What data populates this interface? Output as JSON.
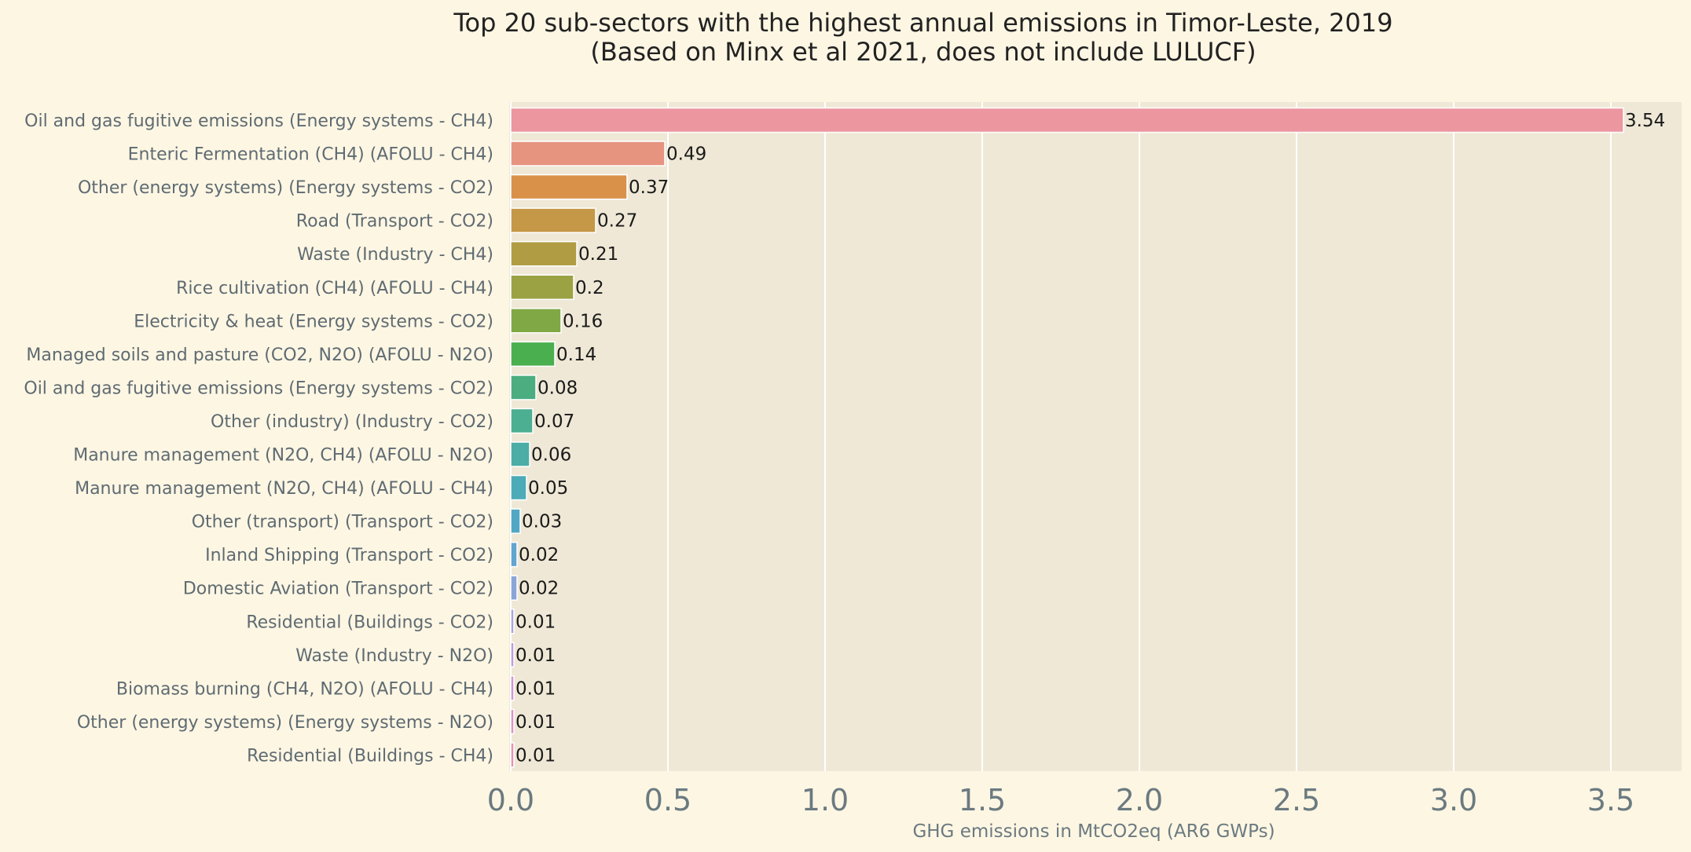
{
  "chart_data": {
    "type": "bar",
    "orientation": "horizontal",
    "title": "Top 20 sub-sectors with the highest annual emissions in Timor-Leste, 2019",
    "subtitle": "(Based on Minx et al 2021, does not include LULUCF)",
    "xlabel": "GHG emissions in MtCO2eq (AR6 GWPs)",
    "ylabel": "",
    "xlim": [
      0,
      3.72
    ],
    "xticks": [
      "0.0",
      "0.5",
      "1.0",
      "1.5",
      "2.0",
      "2.5",
      "3.0",
      "3.5"
    ],
    "grid": true,
    "categories": [
      "Oil and gas fugitive emissions (Energy systems - CH4)",
      "Enteric Fermentation (CH4) (AFOLU - CH4)",
      "Other (energy systems) (Energy systems - CO2)",
      "Road (Transport - CO2)",
      "Waste (Industry - CH4)",
      "Rice cultivation (CH4) (AFOLU - CH4)",
      "Electricity & heat (Energy systems - CO2)",
      "Managed soils and pasture (CO2, N2O) (AFOLU - N2O)",
      "Oil and gas fugitive emissions (Energy systems - CO2)",
      "Other (industry) (Industry - CO2)",
      "Manure management (N2O, CH4) (AFOLU - N2O)",
      "Manure management (N2O, CH4) (AFOLU - CH4)",
      "Other (transport) (Transport - CO2)",
      "Inland Shipping (Transport - CO2)",
      "Domestic Aviation (Transport - CO2)",
      "Residential (Buildings - CO2)",
      "Waste (Industry - N2O)",
      "Biomass burning (CH4, N2O) (AFOLU - CH4)",
      "Other (energy systems) (Energy systems - N2O)",
      "Residential (Buildings - CH4)"
    ],
    "values": [
      3.54,
      0.49,
      0.37,
      0.27,
      0.21,
      0.2,
      0.16,
      0.14,
      0.08,
      0.07,
      0.06,
      0.05,
      0.03,
      0.02,
      0.02,
      0.01,
      0.01,
      0.01,
      0.01,
      0.01
    ],
    "value_labels": [
      "3.54",
      "0.49",
      "0.37",
      "0.27",
      "0.21",
      "0.2",
      "0.16",
      "0.14",
      "0.08",
      "0.07",
      "0.06",
      "0.05",
      "0.03",
      "0.02",
      "0.02",
      "0.01",
      "0.01",
      "0.01",
      "0.01",
      "0.01"
    ],
    "colors": [
      "#ec96a0",
      "#e69480",
      "#d99149",
      "#c59847",
      "#b09c42",
      "#9ba244",
      "#80a844",
      "#4aaf4e",
      "#4bad80",
      "#4caf92",
      "#4caca6",
      "#4cabb7",
      "#52a8c4",
      "#62a5cf",
      "#8aa6d8",
      "#aaa5dc",
      "#c09dd9",
      "#d096d3",
      "#dd92c5",
      "#e891b4"
    ]
  }
}
